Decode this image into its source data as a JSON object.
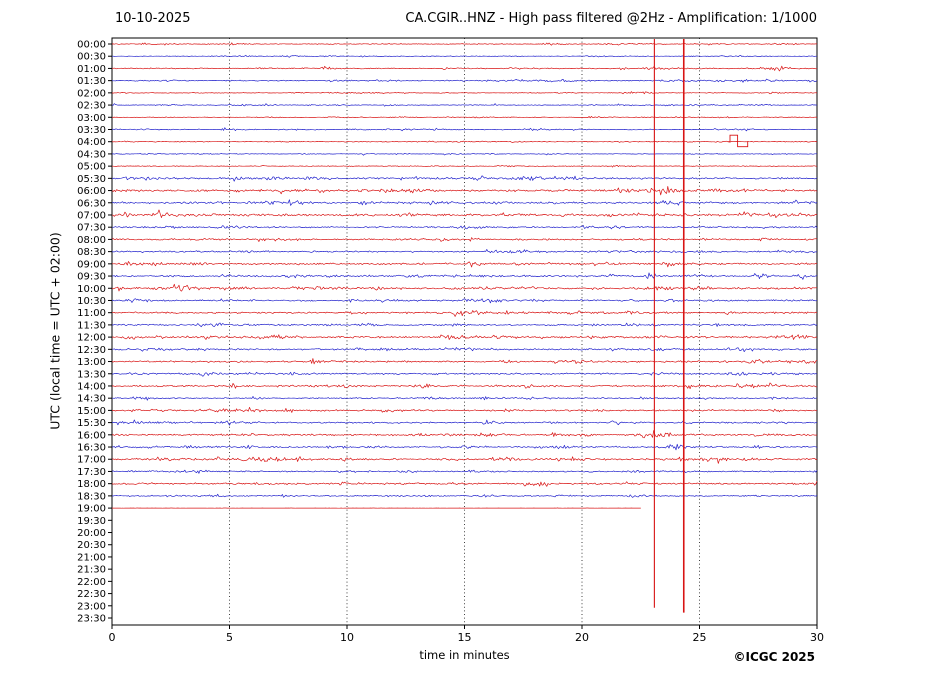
{
  "chart_data": {
    "type": "line",
    "subtype": "helicorder-seismogram",
    "date": "10-10-2025",
    "title": "CA.CGIR..HNZ - High pass filtered @2Hz - Amplification: 1/1000",
    "xlabel": "time in minutes",
    "ylabel": "UTC (local time = UTC + 02:00)",
    "copyright": "©ICGC 2025",
    "x_range": [
      0,
      30
    ],
    "x_ticks": [
      0,
      5,
      10,
      15,
      20,
      25,
      30
    ],
    "grid_x": [
      5,
      10,
      15,
      20,
      25
    ],
    "legend": "none",
    "grid": "vertical-dotted",
    "colors": {
      "red": "#d81414",
      "blue": "#2323cc"
    },
    "rows": [
      {
        "label": "00:00",
        "color": "red",
        "amp": 0.7
      },
      {
        "label": "00:30",
        "color": "blue",
        "amp": 0.6
      },
      {
        "label": "01:00",
        "color": "red",
        "amp": 0.8
      },
      {
        "label": "01:30",
        "color": "blue",
        "amp": 0.9
      },
      {
        "label": "02:00",
        "color": "red",
        "amp": 0.6
      },
      {
        "label": "02:30",
        "color": "blue",
        "amp": 0.6
      },
      {
        "label": "03:00",
        "color": "red",
        "amp": 0.5
      },
      {
        "label": "03:30",
        "color": "blue",
        "amp": 0.7
      },
      {
        "label": "04:00",
        "color": "red",
        "amp": 0.6
      },
      {
        "label": "04:30",
        "color": "blue",
        "amp": 0.5
      },
      {
        "label": "05:00",
        "color": "red",
        "amp": 0.6
      },
      {
        "label": "05:30",
        "color": "blue",
        "amp": 1.6
      },
      {
        "label": "06:00",
        "color": "red",
        "amp": 1.8
      },
      {
        "label": "06:30",
        "color": "blue",
        "amp": 1.6
      },
      {
        "label": "07:00",
        "color": "red",
        "amp": 1.8
      },
      {
        "label": "07:30",
        "color": "blue",
        "amp": 1.3
      },
      {
        "label": "08:00",
        "color": "red",
        "amp": 1.3
      },
      {
        "label": "08:30",
        "color": "blue",
        "amp": 1.3
      },
      {
        "label": "09:00",
        "color": "red",
        "amp": 1.5
      },
      {
        "label": "09:30",
        "color": "blue",
        "amp": 1.5
      },
      {
        "label": "10:00",
        "color": "red",
        "amp": 1.7
      },
      {
        "label": "10:30",
        "color": "blue",
        "amp": 1.3
      },
      {
        "label": "11:00",
        "color": "red",
        "amp": 1.5
      },
      {
        "label": "11:30",
        "color": "blue",
        "amp": 1.3
      },
      {
        "label": "12:00",
        "color": "red",
        "amp": 1.7
      },
      {
        "label": "12:30",
        "color": "blue",
        "amp": 1.5
      },
      {
        "label": "13:00",
        "color": "red",
        "amp": 1.5
      },
      {
        "label": "13:30",
        "color": "blue",
        "amp": 1.3
      },
      {
        "label": "14:00",
        "color": "red",
        "amp": 1.5
      },
      {
        "label": "14:30",
        "color": "blue",
        "amp": 1.0
      },
      {
        "label": "15:00",
        "color": "red",
        "amp": 1.3
      },
      {
        "label": "15:30",
        "color": "blue",
        "amp": 1.3
      },
      {
        "label": "16:00",
        "color": "red",
        "amp": 1.5
      },
      {
        "label": "16:30",
        "color": "blue",
        "amp": 1.3
      },
      {
        "label": "17:00",
        "color": "red",
        "amp": 1.5
      },
      {
        "label": "17:30",
        "color": "blue",
        "amp": 1.2
      },
      {
        "label": "18:00",
        "color": "red",
        "amp": 1.5
      },
      {
        "label": "18:30",
        "color": "blue",
        "amp": 1.0
      },
      {
        "label": "19:00",
        "color": "red",
        "amp": 0.12,
        "end": 22.5
      },
      {
        "label": "19:30",
        "color": "blue",
        "amp": 0
      },
      {
        "label": "20:00",
        "color": "red",
        "amp": 0
      },
      {
        "label": "20:30",
        "color": "blue",
        "amp": 0
      },
      {
        "label": "21:00",
        "color": "red",
        "amp": 0
      },
      {
        "label": "21:30",
        "color": "blue",
        "amp": 0
      },
      {
        "label": "22:00",
        "color": "red",
        "amp": 0
      },
      {
        "label": "22:30",
        "color": "blue",
        "amp": 0
      },
      {
        "label": "23:00",
        "color": "red",
        "amp": 0
      },
      {
        "label": "23:30",
        "color": "blue",
        "amp": 0
      }
    ],
    "events": [
      {
        "row": 2,
        "x": 28.2,
        "amp": 2.5,
        "w": 0.3
      },
      {
        "row": 5,
        "x": 0.15,
        "amp": 2.0,
        "w": 0.08
      },
      {
        "row": 5,
        "x": 16.3,
        "amp": 2.0,
        "w": 0.08
      },
      {
        "row": 7,
        "x": 4.8,
        "amp": 2.0,
        "w": 0.15
      },
      {
        "row": 11,
        "x": 18.0,
        "amp": 1.8,
        "w": 0.3
      },
      {
        "row": 11,
        "x": 19.6,
        "amp": 1.8,
        "w": 0.25
      },
      {
        "row": 12,
        "x": 5.5,
        "amp": 1.8,
        "w": 0.3
      },
      {
        "row": 12,
        "x": 23.2,
        "amp": 3.0,
        "w": 0.5
      },
      {
        "row": 13,
        "x": 23.8,
        "amp": 2.5,
        "w": 0.4
      },
      {
        "row": 14,
        "x": 0.5,
        "amp": 2.0,
        "w": 0.3
      },
      {
        "row": 18,
        "x": 17.4,
        "amp": 2.0,
        "w": 0.25
      },
      {
        "row": 19,
        "x": 7.5,
        "amp": 2.0,
        "w": 0.2
      },
      {
        "row": 19,
        "x": 24.9,
        "amp": 2.5,
        "w": 0.3
      },
      {
        "row": 19,
        "x": 27.6,
        "amp": 3.0,
        "w": 0.35
      },
      {
        "row": 19,
        "x": 29.4,
        "amp": 3.0,
        "w": 0.3
      },
      {
        "row": 20,
        "x": 0.3,
        "amp": 3.0,
        "w": 0.25
      },
      {
        "row": 20,
        "x": 23.5,
        "amp": 2.0,
        "w": 0.3
      },
      {
        "row": 22,
        "x": 26.2,
        "amp": 2.0,
        "w": 0.2
      },
      {
        "row": 24,
        "x": 0.8,
        "amp": 2.5,
        "w": 0.3
      },
      {
        "row": 24,
        "x": 2.0,
        "amp": 2.0,
        "w": 0.2
      },
      {
        "row": 26,
        "x": 16.8,
        "amp": 2.0,
        "w": 0.3
      },
      {
        "row": 26,
        "x": 29.7,
        "amp": 3.5,
        "w": 0.25
      },
      {
        "row": 28,
        "x": 5.2,
        "amp": 2.5,
        "w": 0.15
      },
      {
        "row": 28,
        "x": 13.3,
        "amp": 3.5,
        "w": 0.25
      },
      {
        "row": 29,
        "x": 1.5,
        "amp": 2.0,
        "w": 0.15
      },
      {
        "row": 31,
        "x": 18.8,
        "amp": 2.5,
        "w": 0.25
      },
      {
        "row": 32,
        "x": 22.9,
        "amp": 4.0,
        "w": 0.4
      },
      {
        "row": 32,
        "x": 23.6,
        "amp": 3.0,
        "w": 0.3
      },
      {
        "row": 33,
        "x": 24.0,
        "amp": 3.0,
        "w": 0.4
      },
      {
        "row": 34,
        "x": 25.8,
        "amp": 3.0,
        "w": 0.2
      },
      {
        "row": 36,
        "x": 18.3,
        "amp": 2.0,
        "w": 0.3
      },
      {
        "row": 37,
        "x": 7.3,
        "amp": 2.5,
        "w": 0.15
      }
    ],
    "vertical_lines": [
      {
        "x": 23.08,
        "width": 1.1,
        "row_from": 0,
        "row_to": 46
      },
      {
        "x": 24.33,
        "width": 1.6,
        "row_from": 0,
        "row_to": 46.4
      }
    ],
    "calibration_pulse": {
      "row": 8,
      "points_min": [
        [
          26.2,
          0
        ],
        [
          26.3,
          0
        ],
        [
          26.3,
          -6.5
        ],
        [
          26.62,
          -6.5
        ],
        [
          26.62,
          5
        ],
        [
          27.05,
          5
        ],
        [
          27.05,
          0
        ]
      ]
    }
  }
}
